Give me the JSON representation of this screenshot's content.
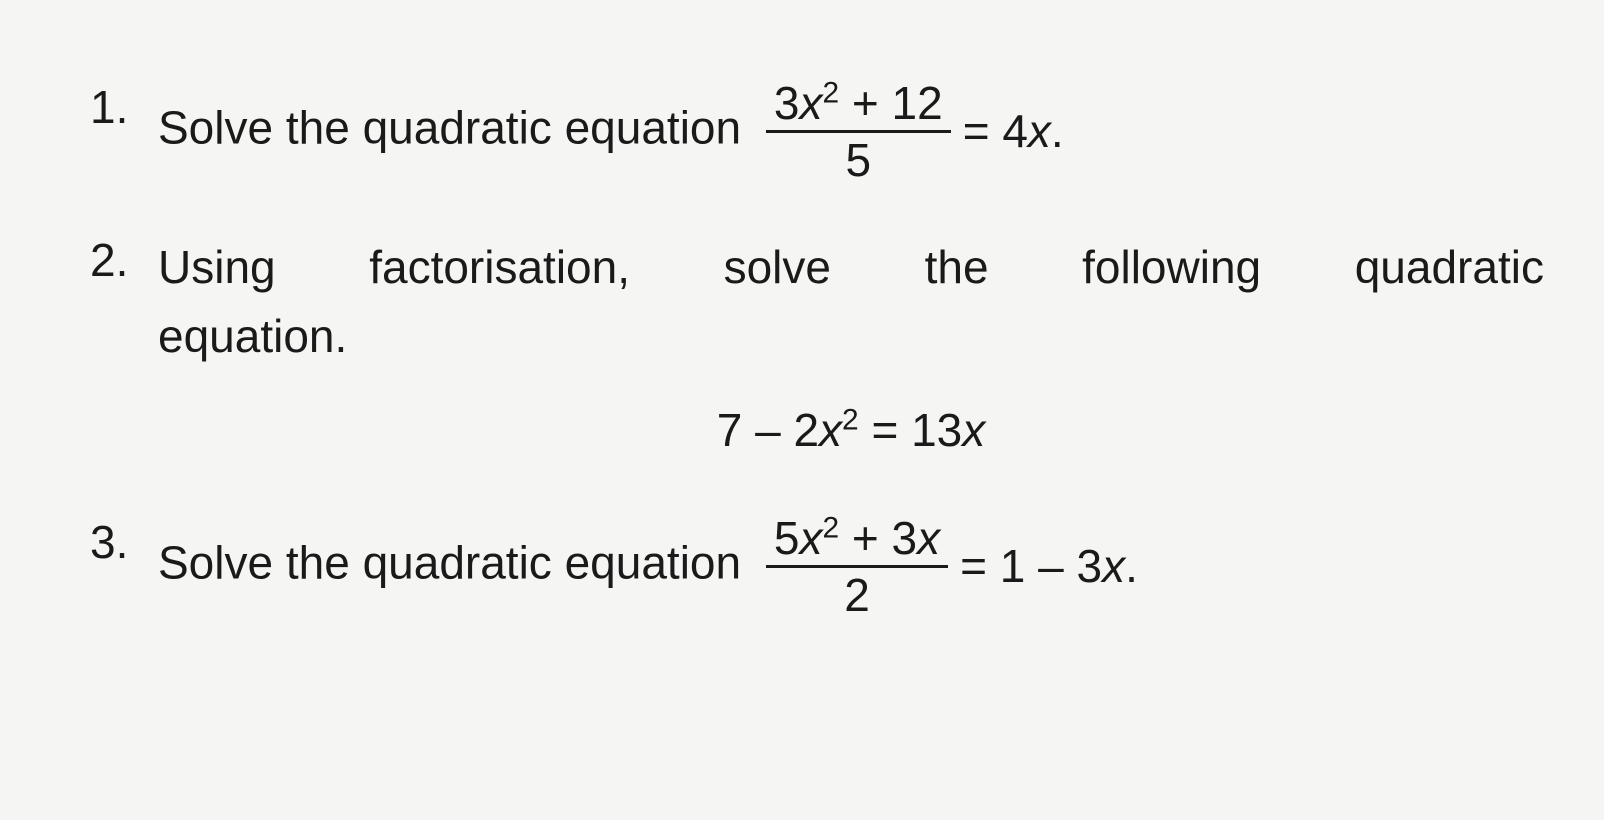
{
  "problems": {
    "p1": {
      "number": "1.",
      "text_before": "Solve the quadratic equation",
      "fraction_numerator_a": "3",
      "fraction_numerator_var": "x",
      "fraction_numerator_exp": "2",
      "fraction_numerator_op": " + 12",
      "fraction_denominator": "5",
      "equals": " = 4",
      "rhs_var": "x",
      "period": "."
    },
    "p2": {
      "number": "2.",
      "line1_words": [
        "Using",
        "factorisation,",
        "solve",
        "the",
        "following",
        "quadratic"
      ],
      "line2": "equation.",
      "eq_a": "7 – 2",
      "eq_var1": "x",
      "eq_exp": "2",
      "eq_mid": " = 13",
      "eq_var2": "x"
    },
    "p3": {
      "number": "3.",
      "text_before": "Solve the quadratic equation",
      "fraction_numerator_a": "5",
      "fraction_numerator_var1": "x",
      "fraction_numerator_exp": "2",
      "fraction_numerator_op": " + 3",
      "fraction_numerator_var2": "x",
      "fraction_denominator": "2",
      "equals": " = 1 – 3",
      "rhs_var": "x",
      "period": "."
    }
  },
  "style": {
    "background_color": "#f5f5f3",
    "text_color": "#1a1a1a",
    "font_size_pt": 46,
    "font_family": "Arial, Helvetica, sans-serif"
  }
}
